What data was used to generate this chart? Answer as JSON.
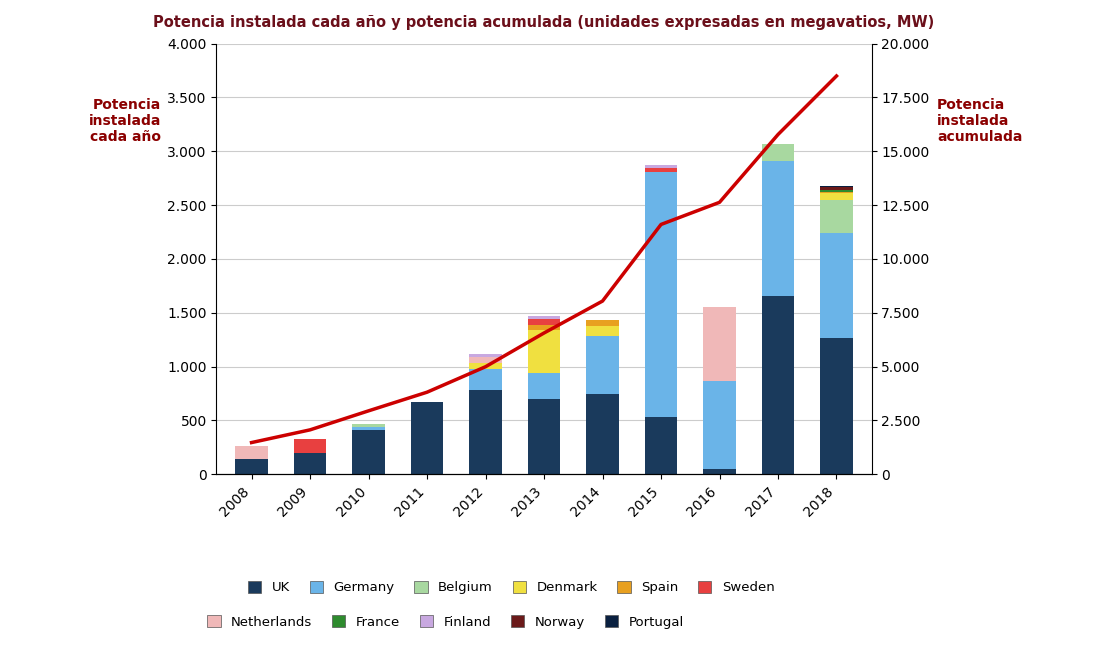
{
  "title": "Potencia instalada cada año y potencia acumulada (unidades expresadas en megavatios, MW)",
  "ylabel_left": "Potencia\ninstalada\ncada año",
  "ylabel_right": "Potencia\ninstalada\nacumulada",
  "years": [
    2008,
    2009,
    2010,
    2011,
    2012,
    2013,
    2014,
    2015,
    2016,
    2017,
    2018
  ],
  "bar_data": {
    "UK": [
      140,
      200,
      410,
      670,
      780,
      700,
      750,
      530,
      50,
      1660,
      1270
    ],
    "Germany": [
      0,
      0,
      30,
      0,
      200,
      240,
      530,
      2282,
      813,
      1247,
      969
    ],
    "Belgium": [
      0,
      0,
      30,
      0,
      0,
      0,
      0,
      0,
      0,
      165,
      309
    ],
    "Denmark": [
      0,
      0,
      0,
      0,
      50,
      400,
      100,
      0,
      0,
      0,
      61
    ],
    "Spain": [
      0,
      0,
      0,
      0,
      0,
      50,
      50,
      0,
      0,
      0,
      14
    ],
    "Sweden": [
      0,
      130,
      0,
      0,
      0,
      50,
      0,
      30,
      0,
      0,
      0
    ],
    "Netherlands": [
      120,
      0,
      0,
      0,
      60,
      0,
      0,
      0,
      691,
      0,
      0
    ],
    "France": [
      0,
      0,
      0,
      0,
      0,
      0,
      0,
      0,
      0,
      0,
      20
    ],
    "Finland": [
      0,
      0,
      0,
      0,
      30,
      30,
      0,
      30,
      0,
      0,
      0
    ],
    "Norway": [
      0,
      0,
      0,
      0,
      0,
      0,
      0,
      0,
      0,
      0,
      30
    ],
    "Portugal": [
      0,
      0,
      0,
      0,
      0,
      0,
      0,
      0,
      0,
      0,
      2
    ]
  },
  "cumulative": [
    1473,
    2063,
    2946,
    3812,
    4995,
    6562,
    8045,
    11603,
    12631,
    15780,
    18499
  ],
  "bar_colors": {
    "UK": "#1a3a5c",
    "Germany": "#6ab4e8",
    "Belgium": "#a8d8a0",
    "Denmark": "#f0e040",
    "Spain": "#e8a020",
    "Sweden": "#e84040",
    "Netherlands": "#f0b8b8",
    "France": "#2e8b2e",
    "Finland": "#c8a8e0",
    "Norway": "#6b1a1a",
    "Portugal": "#0a2040"
  },
  "line_color": "#cc0000",
  "ylim_left": [
    0,
    4000
  ],
  "ylim_right": [
    0,
    20000
  ],
  "yticks_left": [
    0,
    500,
    1000,
    1500,
    2000,
    2500,
    3000,
    3500,
    4000
  ],
  "yticks_right": [
    0,
    2500,
    5000,
    7500,
    10000,
    12500,
    15000,
    17500,
    20000
  ],
  "title_color": "#6b0f1a",
  "axis_label_color": "#8b0000",
  "background_color": "#ffffff",
  "legend_line_label": "Potencia instalada acumulada"
}
